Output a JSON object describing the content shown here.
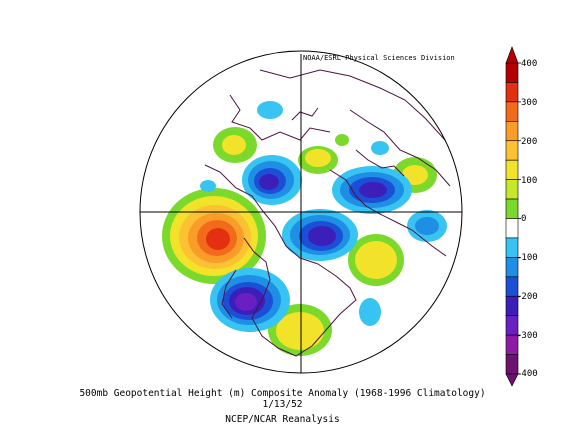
{
  "credit": "NOAA/ESRL Physical Sciences Division",
  "caption": {
    "title": "500mb Geopotential Height (m) Composite Anomaly (1968-1996 Climatology)",
    "date": "1/13/52",
    "source": "NCEP/NCAR Reanalysis"
  },
  "colorbar": {
    "labels": [
      "400",
      "300",
      "200",
      "100",
      "0",
      "-100",
      "-200",
      "-300",
      "-400"
    ],
    "colors": [
      "#b30000",
      "#e23010",
      "#f36a1a",
      "#fa9d28",
      "#fcc234",
      "#f2e22a",
      "#c6e82a",
      "#7ad92a",
      "#ffffff",
      "#37c4f2",
      "#1e8fe4",
      "#1b4fd6",
      "#3c1fb8",
      "#6a1fc2",
      "#8e1aa6",
      "#6d1270"
    ],
    "bounds": [
      -400,
      400
    ]
  },
  "anomaly_colors": {
    "warm": [
      "#7ad92a",
      "#f2e22a",
      "#fcc234",
      "#fa9d28",
      "#f36a1a",
      "#e23010",
      "#b30000"
    ],
    "cold": [
      "#37c4f2",
      "#1e8fe4",
      "#1b4fd6",
      "#3c1fb8",
      "#6a1fc2",
      "#8e1aa6"
    ]
  },
  "projection": "north-polar-stereographic",
  "legend_position": "right"
}
